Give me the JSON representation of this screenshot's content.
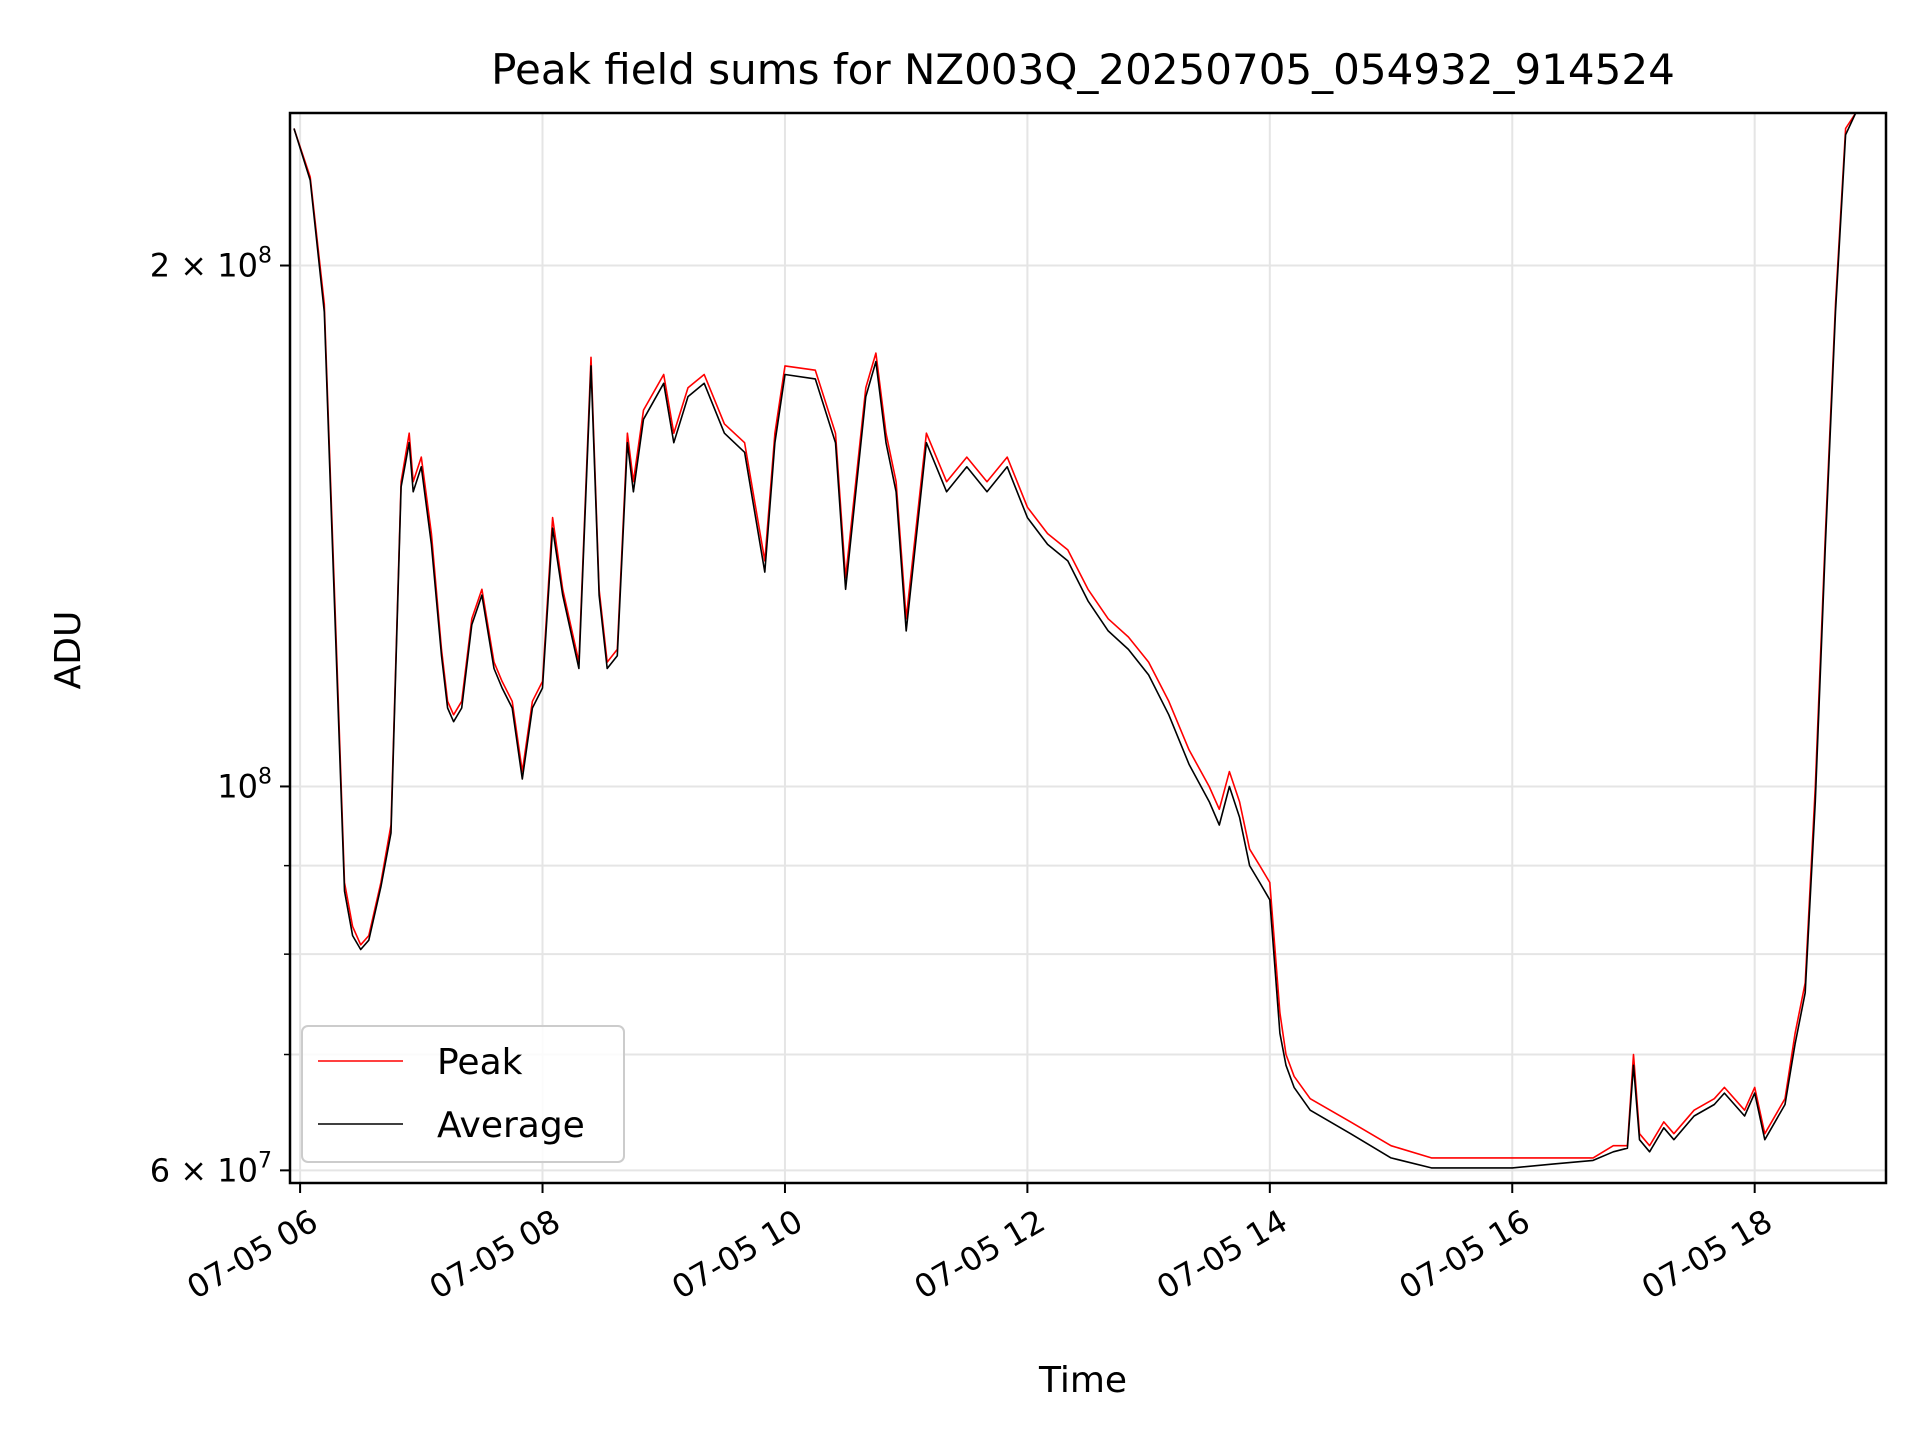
{
  "chart_data": {
    "type": "line",
    "title": "Peak field sums for NZ003Q_20250705_054932_914524",
    "xlabel": "Time",
    "ylabel": "ADU",
    "yscale": "log",
    "ylim": [
      59000000,
      245000000
    ],
    "xlim": [
      "2025-07-05T05:55",
      "2025-07-05T19:05"
    ],
    "grid": true,
    "legend_position": "lower-left",
    "x_ticks": [
      {
        "t": "2025-07-05T06:00",
        "label": "07-05 06"
      },
      {
        "t": "2025-07-05T08:00",
        "label": "07-05 08"
      },
      {
        "t": "2025-07-05T10:00",
        "label": "07-05 10"
      },
      {
        "t": "2025-07-05T12:00",
        "label": "07-05 12"
      },
      {
        "t": "2025-07-05T14:00",
        "label": "07-05 14"
      },
      {
        "t": "2025-07-05T16:00",
        "label": "07-05 16"
      },
      {
        "t": "2025-07-05T18:00",
        "label": "07-05 18"
      }
    ],
    "y_ticks": [
      {
        "v": 60000000,
        "base": "6 × 10",
        "exp": "7"
      },
      {
        "v": 100000000,
        "base": "10",
        "exp": "8"
      },
      {
        "v": 200000000,
        "base": "2 × 10",
        "exp": "8"
      }
    ],
    "y_minor_ticks": [
      70000000,
      80000000,
      90000000
    ],
    "series": [
      {
        "name": "Peak",
        "color": "#ff0000",
        "x": [
          "2025-07-05T05:57",
          "2025-07-05T06:05",
          "2025-07-05T06:12",
          "2025-07-05T06:18",
          "2025-07-05T06:22",
          "2025-07-05T06:26",
          "2025-07-05T06:30",
          "2025-07-05T06:34",
          "2025-07-05T06:40",
          "2025-07-05T06:45",
          "2025-07-05T06:50",
          "2025-07-05T06:54",
          "2025-07-05T06:56",
          "2025-07-05T07:00",
          "2025-07-05T07:05",
          "2025-07-05T07:10",
          "2025-07-05T07:13",
          "2025-07-05T07:16",
          "2025-07-05T07:20",
          "2025-07-05T07:25",
          "2025-07-05T07:30",
          "2025-07-05T07:36",
          "2025-07-05T07:40",
          "2025-07-05T07:45",
          "2025-07-05T07:50",
          "2025-07-05T07:55",
          "2025-07-05T08:00",
          "2025-07-05T08:05",
          "2025-07-05T08:10",
          "2025-07-05T08:18",
          "2025-07-05T08:24",
          "2025-07-05T08:28",
          "2025-07-05T08:32",
          "2025-07-05T08:37",
          "2025-07-05T08:42",
          "2025-07-05T08:45",
          "2025-07-05T08:50",
          "2025-07-05T09:00",
          "2025-07-05T09:05",
          "2025-07-05T09:12",
          "2025-07-05T09:20",
          "2025-07-05T09:30",
          "2025-07-05T09:40",
          "2025-07-05T09:50",
          "2025-07-05T09:55",
          "2025-07-05T10:00",
          "2025-07-05T10:15",
          "2025-07-05T10:25",
          "2025-07-05T10:30",
          "2025-07-05T10:40",
          "2025-07-05T10:45",
          "2025-07-05T10:50",
          "2025-07-05T10:55",
          "2025-07-05T11:00",
          "2025-07-05T11:10",
          "2025-07-05T11:20",
          "2025-07-05T11:30",
          "2025-07-05T11:40",
          "2025-07-05T11:50",
          "2025-07-05T12:00",
          "2025-07-05T12:10",
          "2025-07-05T12:20",
          "2025-07-05T12:30",
          "2025-07-05T12:40",
          "2025-07-05T12:50",
          "2025-07-05T13:00",
          "2025-07-05T13:10",
          "2025-07-05T13:20",
          "2025-07-05T13:30",
          "2025-07-05T13:35",
          "2025-07-05T13:40",
          "2025-07-05T13:45",
          "2025-07-05T13:50",
          "2025-07-05T13:55",
          "2025-07-05T14:00",
          "2025-07-05T14:05",
          "2025-07-05T14:08",
          "2025-07-05T14:12",
          "2025-07-05T14:20",
          "2025-07-05T14:40",
          "2025-07-05T15:00",
          "2025-07-05T15:20",
          "2025-07-05T15:40",
          "2025-07-05T16:00",
          "2025-07-05T16:20",
          "2025-07-05T16:40",
          "2025-07-05T16:50",
          "2025-07-05T16:57",
          "2025-07-05T17:00",
          "2025-07-05T17:03",
          "2025-07-05T17:08",
          "2025-07-05T17:15",
          "2025-07-05T17:20",
          "2025-07-05T17:30",
          "2025-07-05T17:40",
          "2025-07-05T17:45",
          "2025-07-05T17:55",
          "2025-07-05T18:00",
          "2025-07-05T18:05",
          "2025-07-05T18:15",
          "2025-07-05T18:20",
          "2025-07-05T18:25",
          "2025-07-05T18:30",
          "2025-07-05T18:35",
          "2025-07-05T18:40",
          "2025-07-05T18:45",
          "2025-07-05T18:50"
        ],
        "values": [
          240000000,
          225000000,
          190000000,
          120000000,
          88000000,
          83000000,
          81000000,
          82000000,
          88000000,
          95000000,
          150000000,
          160000000,
          150000000,
          155000000,
          140000000,
          120000000,
          112000000,
          110000000,
          112000000,
          125000000,
          130000000,
          118000000,
          115000000,
          112000000,
          102000000,
          112000000,
          115000000,
          143000000,
          130000000,
          118000000,
          177000000,
          130000000,
          118000000,
          120000000,
          160000000,
          150000000,
          165000000,
          173000000,
          160000000,
          170000000,
          173000000,
          162000000,
          158000000,
          135000000,
          160000000,
          175000000,
          174000000,
          160000000,
          132000000,
          170000000,
          178000000,
          160000000,
          150000000,
          125000000,
          160000000,
          150000000,
          155000000,
          150000000,
          155000000,
          145000000,
          140000000,
          137000000,
          130000000,
          125000000,
          122000000,
          118000000,
          112000000,
          105000000,
          100000000,
          97000000,
          102000000,
          98000000,
          92000000,
          90000000,
          88000000,
          74000000,
          70000000,
          68000000,
          66000000,
          64000000,
          62000000,
          61000000,
          61000000,
          61000000,
          61000000,
          61000000,
          62000000,
          62000000,
          70000000,
          63000000,
          62000000,
          64000000,
          63000000,
          65000000,
          66000000,
          67000000,
          65000000,
          67000000,
          63000000,
          66000000,
          72000000,
          77000000,
          100000000,
          140000000,
          190000000,
          240000000,
          245000000
        ]
      },
      {
        "name": "Average",
        "color": "#000000",
        "x": [
          "2025-07-05T05:57",
          "2025-07-05T06:05",
          "2025-07-05T06:12",
          "2025-07-05T06:18",
          "2025-07-05T06:22",
          "2025-07-05T06:26",
          "2025-07-05T06:30",
          "2025-07-05T06:34",
          "2025-07-05T06:40",
          "2025-07-05T06:45",
          "2025-07-05T06:50",
          "2025-07-05T06:54",
          "2025-07-05T06:56",
          "2025-07-05T07:00",
          "2025-07-05T07:05",
          "2025-07-05T07:10",
          "2025-07-05T07:13",
          "2025-07-05T07:16",
          "2025-07-05T07:20",
          "2025-07-05T07:25",
          "2025-07-05T07:30",
          "2025-07-05T07:36",
          "2025-07-05T07:40",
          "2025-07-05T07:45",
          "2025-07-05T07:50",
          "2025-07-05T07:55",
          "2025-07-05T08:00",
          "2025-07-05T08:05",
          "2025-07-05T08:10",
          "2025-07-05T08:18",
          "2025-07-05T08:24",
          "2025-07-05T08:28",
          "2025-07-05T08:32",
          "2025-07-05T08:37",
          "2025-07-05T08:42",
          "2025-07-05T08:45",
          "2025-07-05T08:50",
          "2025-07-05T09:00",
          "2025-07-05T09:05",
          "2025-07-05T09:12",
          "2025-07-05T09:20",
          "2025-07-05T09:30",
          "2025-07-05T09:40",
          "2025-07-05T09:50",
          "2025-07-05T09:55",
          "2025-07-05T10:00",
          "2025-07-05T10:15",
          "2025-07-05T10:25",
          "2025-07-05T10:30",
          "2025-07-05T10:40",
          "2025-07-05T10:45",
          "2025-07-05T10:50",
          "2025-07-05T10:55",
          "2025-07-05T11:00",
          "2025-07-05T11:10",
          "2025-07-05T11:20",
          "2025-07-05T11:30",
          "2025-07-05T11:40",
          "2025-07-05T11:50",
          "2025-07-05T12:00",
          "2025-07-05T12:10",
          "2025-07-05T12:20",
          "2025-07-05T12:30",
          "2025-07-05T12:40",
          "2025-07-05T12:50",
          "2025-07-05T13:00",
          "2025-07-05T13:10",
          "2025-07-05T13:20",
          "2025-07-05T13:30",
          "2025-07-05T13:35",
          "2025-07-05T13:40",
          "2025-07-05T13:45",
          "2025-07-05T13:50",
          "2025-07-05T13:55",
          "2025-07-05T14:00",
          "2025-07-05T14:05",
          "2025-07-05T14:08",
          "2025-07-05T14:12",
          "2025-07-05T14:20",
          "2025-07-05T14:40",
          "2025-07-05T15:00",
          "2025-07-05T15:20",
          "2025-07-05T15:40",
          "2025-07-05T16:00",
          "2025-07-05T16:20",
          "2025-07-05T16:40",
          "2025-07-05T16:50",
          "2025-07-05T16:57",
          "2025-07-05T17:00",
          "2025-07-05T17:03",
          "2025-07-05T17:08",
          "2025-07-05T17:15",
          "2025-07-05T17:20",
          "2025-07-05T17:30",
          "2025-07-05T17:40",
          "2025-07-05T17:45",
          "2025-07-05T17:55",
          "2025-07-05T18:00",
          "2025-07-05T18:05",
          "2025-07-05T18:15",
          "2025-07-05T18:20",
          "2025-07-05T18:25",
          "2025-07-05T18:30",
          "2025-07-05T18:35",
          "2025-07-05T18:40",
          "2025-07-05T18:45",
          "2025-07-05T18:50"
        ],
        "values": [
          240000000,
          224000000,
          188000000,
          118000000,
          87000000,
          82000000,
          80500000,
          81500000,
          87500000,
          94000000,
          149000000,
          158000000,
          148000000,
          153000000,
          138000000,
          119000000,
          111000000,
          109000000,
          111000000,
          124000000,
          129000000,
          117000000,
          114000000,
          111000000,
          101000000,
          111000000,
          114000000,
          141000000,
          129000000,
          117000000,
          175000000,
          129000000,
          117000000,
          119000000,
          158000000,
          148000000,
          163000000,
          171000000,
          158000000,
          168000000,
          171000000,
          160000000,
          156000000,
          133000000,
          158000000,
          173000000,
          172000000,
          158000000,
          130000000,
          168000000,
          176000000,
          158000000,
          148000000,
          123000000,
          158000000,
          148000000,
          153000000,
          148000000,
          153000000,
          143000000,
          138000000,
          135000000,
          128000000,
          123000000,
          120000000,
          116000000,
          110000000,
          103000000,
          98000000,
          95000000,
          100000000,
          96000000,
          90000000,
          88000000,
          86000000,
          72000000,
          69000000,
          67000000,
          65000000,
          63000000,
          61000000,
          60200000,
          60200000,
          60200000,
          60500000,
          60800000,
          61500000,
          61800000,
          69000000,
          62500000,
          61500000,
          63500000,
          62500000,
          64500000,
          65500000,
          66500000,
          64500000,
          66500000,
          62500000,
          65500000,
          71000000,
          76000000,
          98000000,
          138000000,
          188000000,
          238000000,
          245000000
        ]
      }
    ]
  }
}
